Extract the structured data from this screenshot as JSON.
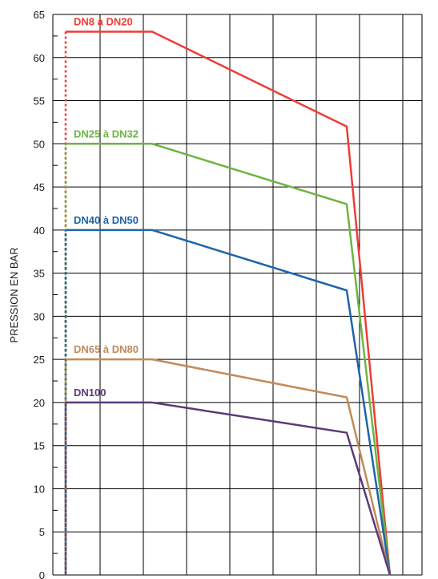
{
  "chart_data": {
    "type": "line",
    "title": "",
    "xlabel": "",
    "ylabel": "PRESSION EN BAR",
    "ylim": [
      0,
      65
    ],
    "yticks": [
      0,
      5,
      10,
      15,
      20,
      25,
      30,
      35,
      40,
      45,
      50,
      55,
      60,
      65
    ],
    "grid": true,
    "x_ticks_labeled": false,
    "series": [
      {
        "name": "DN8 à DN20",
        "color": "#ee3d36",
        "x": [
          0,
          2,
          6.5,
          7.5
        ],
        "y": [
          63,
          63,
          52,
          0
        ]
      },
      {
        "name": "DN25 à DN32",
        "color": "#6fb443",
        "x": [
          0,
          2,
          6.5,
          7.5
        ],
        "y": [
          50,
          50,
          43,
          0
        ]
      },
      {
        "name": "DN40 à DN50",
        "color": "#1f64a8",
        "x": [
          0,
          2,
          6.5,
          7.5
        ],
        "y": [
          40,
          40,
          33,
          0
        ]
      },
      {
        "name": "DN65 à DN80",
        "color": "#c18a5a",
        "x": [
          0,
          2,
          6.5,
          7.5
        ],
        "y": [
          25,
          25,
          20.6,
          0
        ]
      },
      {
        "name": "DN100",
        "color": "#5b3a77",
        "x": [
          0,
          2,
          6.5,
          7.5
        ],
        "y": [
          20,
          20,
          16.5,
          0
        ]
      }
    ]
  }
}
